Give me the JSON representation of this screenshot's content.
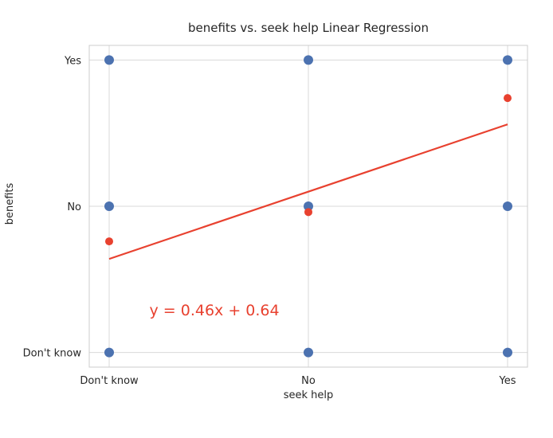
{
  "chart_data": {
    "type": "scatter",
    "title": "benefits vs. seek help Linear Regression",
    "xlabel": "seek help",
    "ylabel": "benefits",
    "x_categories": [
      "Don't know",
      "No",
      "Yes"
    ],
    "y_categories": [
      "Don't know",
      "No",
      "Yes"
    ],
    "xlim": [
      -0.1,
      2.1
    ],
    "ylim": [
      -0.1,
      2.1
    ],
    "grid": true,
    "series": [
      {
        "role": "observations",
        "color": "#4c72b0",
        "points": [
          {
            "x": 0,
            "y": 0
          },
          {
            "x": 0,
            "y": 1
          },
          {
            "x": 0,
            "y": 2
          },
          {
            "x": 1,
            "y": 0
          },
          {
            "x": 1,
            "y": 1
          },
          {
            "x": 1,
            "y": 2
          },
          {
            "x": 2,
            "y": 0
          },
          {
            "x": 2,
            "y": 1
          },
          {
            "x": 2,
            "y": 2
          }
        ]
      },
      {
        "role": "group-means",
        "color": "#e8412f",
        "points": [
          {
            "x": 0,
            "y": 0.76
          },
          {
            "x": 1,
            "y": 0.96
          },
          {
            "x": 2,
            "y": 1.74
          }
        ]
      }
    ],
    "regression": {
      "slope": 0.46,
      "intercept": 0.64,
      "x_range": [
        0,
        2
      ],
      "color": "#e8412f"
    },
    "annotation": {
      "text": "y = 0.46x + 0.64",
      "x": 0.2,
      "y": 0.23,
      "color": "#e8412f"
    },
    "colors": {
      "observations": "#4c72b0",
      "means": "#e8412f",
      "grid": "#d9d9d9",
      "axes": "#cccccc"
    }
  }
}
